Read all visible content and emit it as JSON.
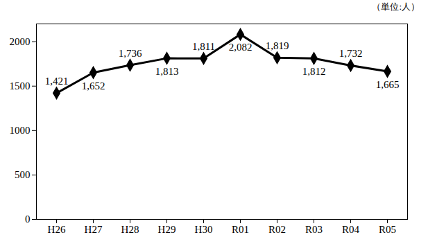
{
  "chart_data": {
    "type": "line",
    "annotation": "（単位:人）",
    "categories": [
      "H26",
      "H27",
      "H28",
      "H29",
      "H30",
      "R01",
      "R02",
      "R03",
      "R04",
      "R05"
    ],
    "values": [
      1421,
      1652,
      1736,
      1813,
      1811,
      2082,
      1819,
      1812,
      1732,
      1665
    ],
    "value_labels": [
      "1,421",
      "1,652",
      "1,736",
      "1,813",
      "1,811",
      "2,082",
      "1,819",
      "1,812",
      "1,732",
      "1,665"
    ],
    "color": "#000000",
    "marker": "diamond",
    "line_style": "solid",
    "data_labels": true,
    "grid": false,
    "ylim": [
      0,
      2200
    ],
    "yticks": [
      0,
      500,
      1000,
      1500,
      2000
    ]
  }
}
